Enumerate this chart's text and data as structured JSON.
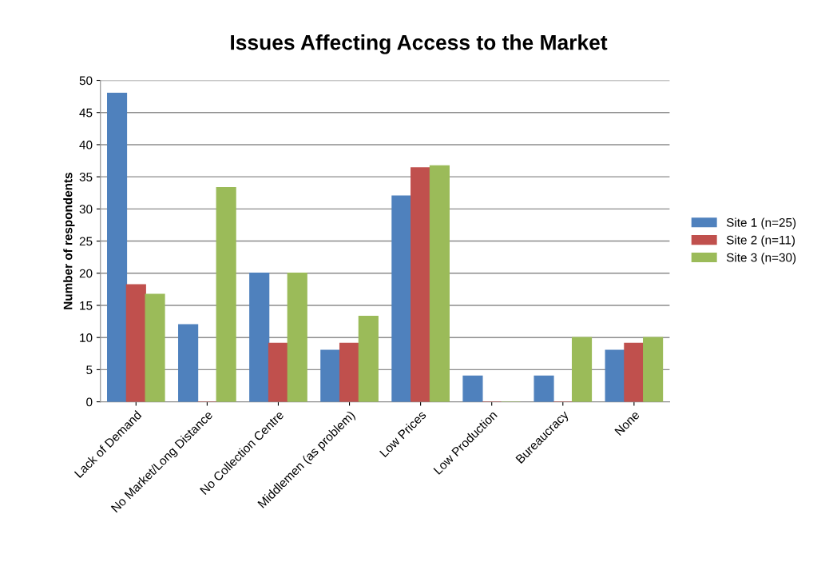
{
  "chart_data": {
    "type": "bar",
    "title": "Issues Affecting Access to the Market",
    "ylabel": "Number of respondents",
    "categories": [
      "Lack of Demand",
      "No Market/Long Distance",
      "No Collection Centre",
      "Middlemen (as problem)",
      "Low Prices",
      "Low Production",
      "Bureaucracy",
      "None"
    ],
    "series": [
      {
        "name": "Site 1 (n=25)",
        "color": "#4f81bd",
        "values": [
          48,
          12,
          20,
          8,
          32,
          4,
          4,
          8
        ]
      },
      {
        "name": "Site 2 (n=11)",
        "color": "#c0504d",
        "values": [
          18.2,
          0,
          9.1,
          9.1,
          36.4,
          0,
          0,
          9.1
        ]
      },
      {
        "name": "Site 3 (n=30)",
        "color": "#9bbb59",
        "values": [
          16.7,
          33.3,
          20,
          13.3,
          36.7,
          0,
          10,
          10
        ]
      }
    ],
    "ylim": [
      0,
      50
    ],
    "yticks": [
      0,
      5,
      10,
      15,
      20,
      25,
      30,
      35,
      40,
      45,
      50
    ],
    "grid": "y",
    "legend": "right"
  }
}
